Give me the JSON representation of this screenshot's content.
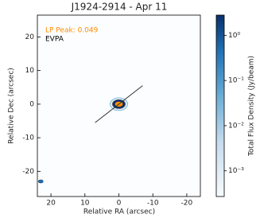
{
  "chart_data": {
    "type": "image",
    "title": "J1924-2914 - Apr 11",
    "xlabel": "Relative RA (arcsec)",
    "ylabel": "Relative Dec (arcsec)",
    "annotations": [
      {
        "text": "LP Peak: 0.049",
        "color": "#ff8c00"
      },
      {
        "text": "EVPA",
        "color": "#000000"
      }
    ],
    "xlim": [
      24,
      -24
    ],
    "xticks": [
      20,
      10,
      0,
      -10,
      -20
    ],
    "ylim": [
      -27.5,
      26.5
    ],
    "yticks": [
      -20,
      -10,
      0,
      10,
      20
    ],
    "source": {
      "x": 0,
      "y": 0
    },
    "evpa_line": {
      "x": [
        7,
        -7
      ],
      "y": [
        -5.5,
        5.5
      ],
      "color": "#333333"
    },
    "beam": {
      "x": 23,
      "y": -23
    },
    "colorbar": {
      "label": "Total Flux Density (Jy/beam)",
      "log": true,
      "lim": [
        0.00027,
        2.8
      ],
      "ticks": [
        {
          "value": 0.001,
          "label": "10⁻³"
        },
        {
          "value": 0.01,
          "label": "10⁻²"
        },
        {
          "value": 0.1,
          "label": "10⁻¹"
        },
        {
          "value": 1,
          "label": "10⁰"
        }
      ]
    }
  }
}
